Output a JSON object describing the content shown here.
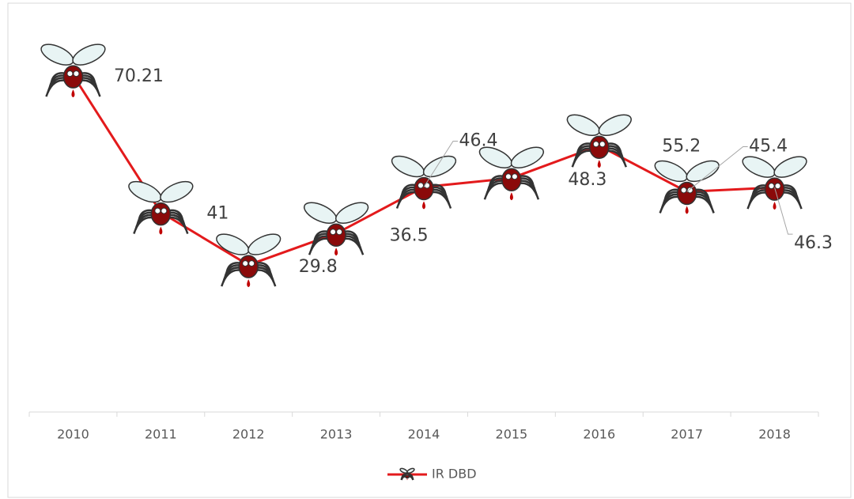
{
  "chart_data": {
    "type": "line",
    "categories": [
      "2010",
      "2011",
      "2012",
      "2013",
      "2014",
      "2015",
      "2016",
      "2017",
      "2018"
    ],
    "series": [
      {
        "name": "IR DBD",
        "color": "#e31a1c",
        "values": [
          70.21,
          41,
          29.8,
          36.5,
          46.4,
          48.3,
          55.2,
          45.4,
          46.3
        ]
      }
    ],
    "ylim": [
      0,
      80
    ],
    "grid": false,
    "legend": "bottom"
  }
}
